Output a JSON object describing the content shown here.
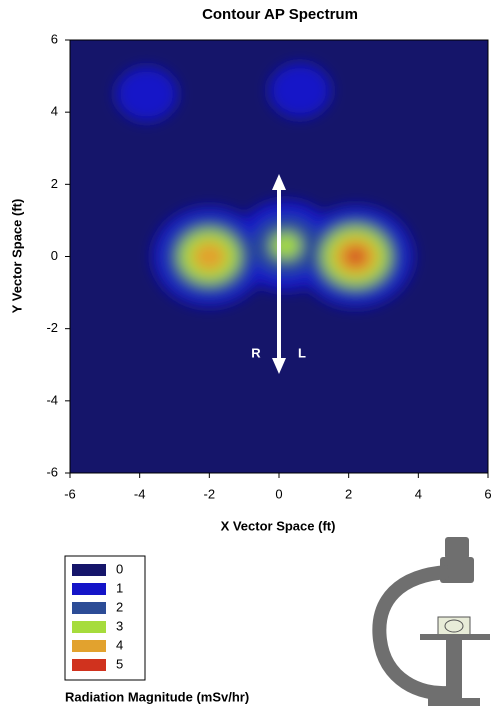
{
  "chart_data": {
    "type": "contour",
    "title": "Contour AP Spectrum",
    "x_label": "X Vector Space (ft)",
    "y_label": "Y Vector Space (ft)",
    "xlim": [
      -6,
      6
    ],
    "ylim": [
      -6,
      6
    ],
    "xticks": [
      -6,
      -4,
      -2,
      0,
      2,
      4,
      6
    ],
    "yticks": [
      -6,
      -4,
      -2,
      0,
      2,
      4,
      6
    ],
    "peaks": [
      {
        "x": -2,
        "y": 0,
        "value": 4.5
      },
      {
        "x": 2.2,
        "y": 0,
        "value": 5
      },
      {
        "x": 0.2,
        "y": 0.3,
        "value": 3
      },
      {
        "x": -3.8,
        "y": 4.5,
        "value": 1
      },
      {
        "x": 0.6,
        "y": 4.6,
        "value": 1
      }
    ],
    "annotations": [
      "R",
      "L"
    ],
    "legend": {
      "title": "Radiation Magnitude (mSv/hr)",
      "levels": [
        0,
        1,
        2,
        3,
        4,
        5
      ],
      "colors": [
        "#15156a",
        "#1414c8",
        "#2c4c96",
        "#a6dc3c",
        "#e2a22e",
        "#d0321e"
      ]
    }
  }
}
